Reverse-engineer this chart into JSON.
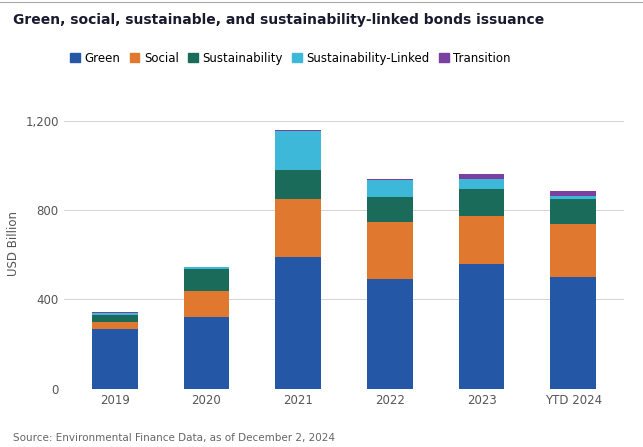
{
  "title": "Green, social, sustainable, and sustainability-linked bonds issuance",
  "source": "Source: Environmental Finance Data, as of December 2, 2024",
  "ylabel": "USD Billion",
  "categories": [
    "2019",
    "2020",
    "2021",
    "2022",
    "2023",
    "YTD 2024"
  ],
  "series": {
    "Green": [
      270,
      320,
      590,
      490,
      560,
      500
    ],
    "Social": [
      30,
      120,
      260,
      255,
      215,
      240
    ],
    "Sustainability": [
      30,
      95,
      130,
      115,
      120,
      110
    ],
    "Sustainability-Linked": [
      10,
      10,
      175,
      75,
      45,
      15
    ],
    "Transition": [
      2,
      2,
      5,
      5,
      20,
      20
    ]
  },
  "colors": {
    "Green": "#2458a6",
    "Social": "#e07830",
    "Sustainability": "#1a6b5a",
    "Sustainability-Linked": "#3db8d8",
    "Transition": "#7b3fa0"
  },
  "ylim": [
    0,
    1300
  ],
  "yticks": [
    0,
    400,
    800,
    1200
  ],
  "ytick_labels": [
    "0",
    "400",
    "800",
    "1,200"
  ],
  "background_color": "#ffffff",
  "grid_color": "#cccccc",
  "title_fontsize": 10,
  "label_fontsize": 8.5,
  "legend_fontsize": 8.5,
  "source_fontsize": 7.5,
  "bar_width": 0.5,
  "title_color": "#1a1a2e",
  "tick_color": "#555555",
  "ylabel_color": "#555555"
}
